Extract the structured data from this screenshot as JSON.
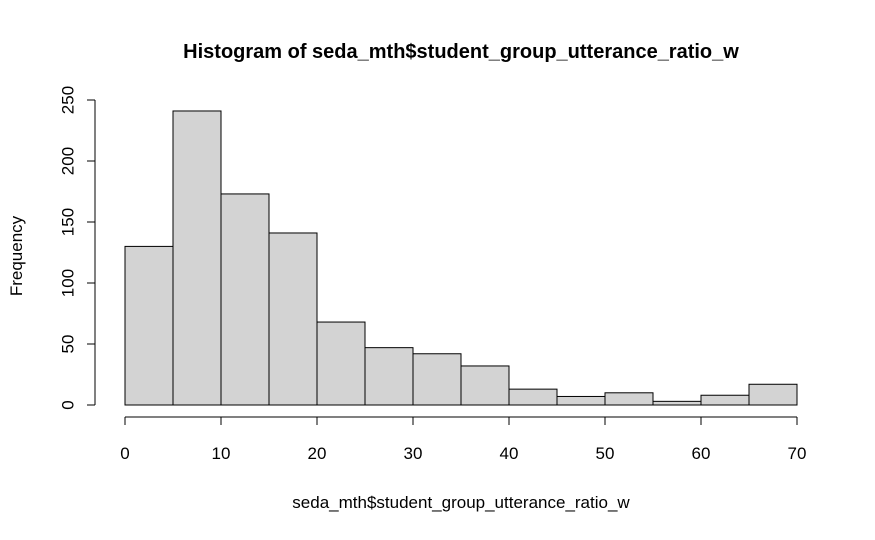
{
  "chart_data": {
    "type": "bar",
    "title": "Histogram of seda_mth$student_group_utterance_ratio_w",
    "xlabel": "seda_mth$student_group_utterance_ratio_w",
    "ylabel": "Frequency",
    "bins": [
      {
        "from": 0,
        "to": 5,
        "count": 130
      },
      {
        "from": 5,
        "to": 10,
        "count": 241
      },
      {
        "from": 10,
        "to": 15,
        "count": 173
      },
      {
        "from": 15,
        "to": 20,
        "count": 141
      },
      {
        "from": 20,
        "to": 25,
        "count": 68
      },
      {
        "from": 25,
        "to": 30,
        "count": 47
      },
      {
        "from": 30,
        "to": 35,
        "count": 42
      },
      {
        "from": 35,
        "to": 40,
        "count": 32
      },
      {
        "from": 40,
        "to": 45,
        "count": 13
      },
      {
        "from": 45,
        "to": 50,
        "count": 7
      },
      {
        "from": 50,
        "to": 55,
        "count": 10
      },
      {
        "from": 55,
        "to": 60,
        "count": 3
      },
      {
        "from": 60,
        "to": 65,
        "count": 8
      },
      {
        "from": 65,
        "to": 70,
        "count": 17
      }
    ],
    "xlim": [
      0,
      70
    ],
    "ylim": [
      0,
      250
    ],
    "xticks": [
      0,
      10,
      20,
      30,
      40,
      50,
      60,
      70
    ],
    "yticks": [
      0,
      50,
      100,
      150,
      200,
      250
    ],
    "grid": false,
    "bar_fill": "#d3d3d3",
    "bar_stroke": "#000000"
  }
}
